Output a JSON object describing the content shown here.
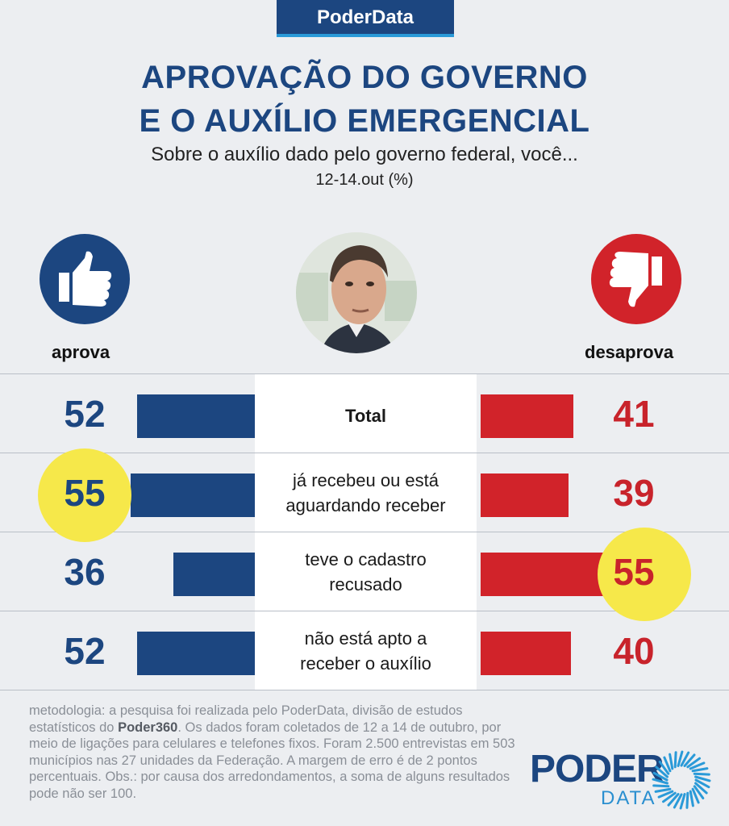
{
  "brand_badge": "PoderData",
  "title_line1": "APROVAÇÃO DO GOVERNO",
  "title_line2": "E O AUXÍLIO EMERGENCIAL",
  "subtitle": "Sobre o auxílio dado pelo governo federal, você...",
  "date_label": "12-14.out (%)",
  "approve_label": "aprova",
  "disapprove_label": "desaprova",
  "colors": {
    "approve": "#1c4680",
    "disapprove": "#d1232a",
    "highlight": "#f6e84a"
  },
  "icons": {
    "approve": "thumbs-up-icon",
    "disapprove": "thumbs-down-icon"
  },
  "chart_data": {
    "type": "bar",
    "title": "APROVAÇÃO DO GOVERNO E O AUXÍLIO EMERGENCIAL",
    "subtitle": "Sobre o auxílio dado pelo governo federal, você...",
    "categories": [
      {
        "line1": "Total",
        "line2": ""
      },
      {
        "line1": "já recebeu ou está",
        "line2": "aguardando receber"
      },
      {
        "line1": "teve o cadastro",
        "line2": "recusado"
      },
      {
        "line1": "não está apto a",
        "line2": "receber o auxílio"
      }
    ],
    "series": [
      {
        "name": "aprova",
        "values": [
          52,
          55,
          36,
          52
        ],
        "highlight": [
          false,
          true,
          false,
          false
        ]
      },
      {
        "name": "desaprova",
        "values": [
          41,
          39,
          55,
          40
        ],
        "highlight": [
          false,
          false,
          true,
          false
        ]
      }
    ],
    "unit": "%"
  },
  "methodology": {
    "part1": "metodologia: a pesquisa foi realizada pelo PoderData, divisão de estudos estatísticos do ",
    "bold": "Poder360",
    "part2": ". Os dados foram coletados de 12 a 14 de outubro, por meio de ligações para celulares e telefones fixos. Foram 2.500 entrevistas em 503 municípios nas 27 unidades da Federação. A margem de erro é de 2 pontos percentuais. Obs.: por causa dos arredondamentos, a soma de alguns resultados pode não ser 100."
  },
  "logo": {
    "word1": "PODER",
    "word2": "DATA"
  }
}
